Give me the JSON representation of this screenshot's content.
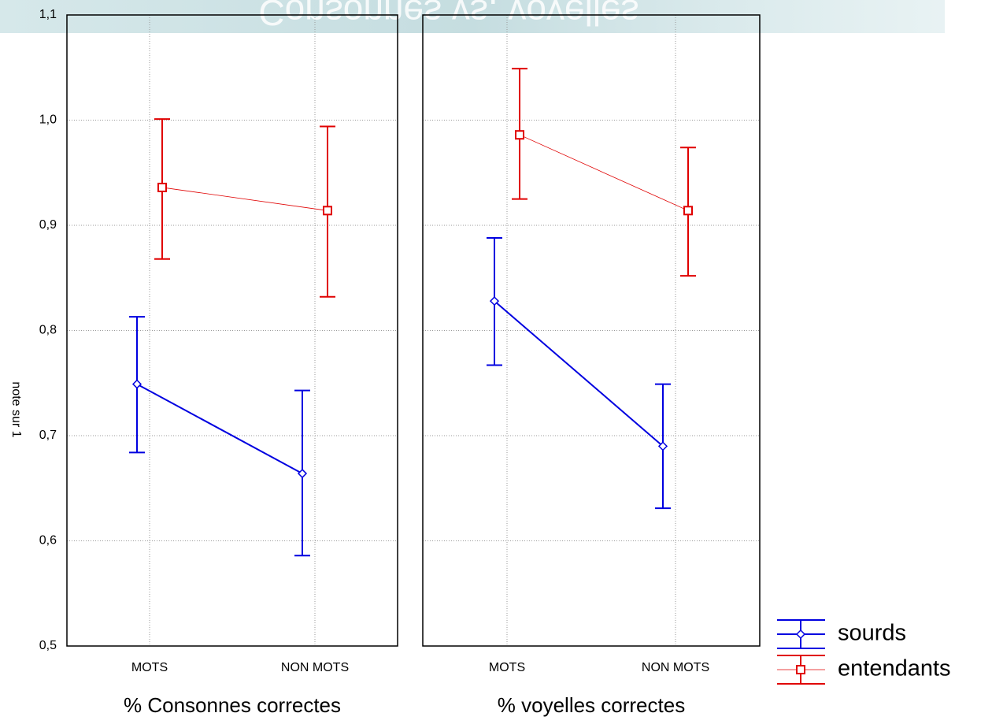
{
  "slide_title": "Consonnes vs. voyelles",
  "chart_data": {
    "type": "errorbar",
    "ylabel": "note sur 1",
    "ylim": [
      0.5,
      1.1
    ],
    "yticks": [
      {
        "value": 0.5,
        "label": "0,5"
      },
      {
        "value": 0.6,
        "label": "0,6"
      },
      {
        "value": 0.7,
        "label": "0,7"
      },
      {
        "value": 0.8,
        "label": "0,8"
      },
      {
        "value": 0.9,
        "label": "0,9"
      },
      {
        "value": 1.0,
        "label": "1,0"
      },
      {
        "value": 1.1,
        "label": "1,1"
      }
    ],
    "grid": true,
    "legend": "lower right",
    "panels": [
      {
        "xlabel": "% Consonnes correctes",
        "categories": [
          "MOTS",
          "NON MOTS"
        ],
        "series": [
          {
            "name": "sourds",
            "color": "#0000e0",
            "marker": "circle",
            "values": [
              0.749,
              0.664
            ],
            "error_low": [
              0.684,
              0.586
            ],
            "error_high": [
              0.813,
              0.743
            ]
          },
          {
            "name": "entendants",
            "color": "#e00000",
            "marker": "square",
            "values": [
              0.936,
              0.914
            ],
            "error_low": [
              0.868,
              0.832
            ],
            "error_high": [
              1.001,
              0.994
            ]
          }
        ]
      },
      {
        "xlabel": "% voyelles correctes",
        "categories": [
          "MOTS",
          "NON MOTS"
        ],
        "series": [
          {
            "name": "sourds",
            "color": "#0000e0",
            "marker": "circle",
            "values": [
              0.828,
              0.69
            ],
            "error_low": [
              0.767,
              0.631
            ],
            "error_high": [
              0.888,
              0.749
            ]
          },
          {
            "name": "entendants",
            "color": "#e00000",
            "marker": "square",
            "values": [
              0.986,
              0.914
            ],
            "error_low": [
              0.925,
              0.852
            ],
            "error_high": [
              1.049,
              0.974
            ]
          }
        ]
      }
    ]
  }
}
